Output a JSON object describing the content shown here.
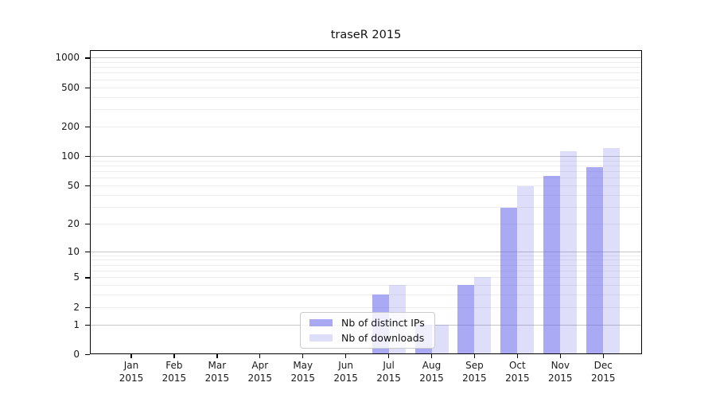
{
  "chart_data": {
    "type": "bar",
    "title": "traseR 2015",
    "categories": [
      "Jan 2015",
      "Feb 2015",
      "Mar 2015",
      "Apr 2015",
      "May 2015",
      "Jun 2015",
      "Jul 2015",
      "Aug 2015",
      "Sep 2015",
      "Oct 2015",
      "Nov 2015",
      "Dec 2015"
    ],
    "series": [
      {
        "name": "Nb of distinct IPs",
        "color": "#a8a8f3",
        "values": [
          0,
          0,
          0,
          0,
          0,
          0,
          3,
          1,
          4,
          29,
          62,
          77
        ]
      },
      {
        "name": "Nb of downloads",
        "color": "#dcdcf8",
        "values": [
          0,
          0,
          0,
          0,
          0,
          0,
          4,
          1,
          5,
          49,
          112,
          120
        ]
      }
    ],
    "xlabel": "",
    "ylabel": "",
    "y_scale": "log10(1+x)",
    "y_ticks": [
      0,
      1,
      2,
      5,
      10,
      20,
      50,
      100,
      200,
      500,
      1000
    ],
    "ylim": [
      0,
      1200
    ],
    "grid": "horizontal; major lines at 1,10,100,1000; minor lines at 2-9 of each decade",
    "legend_position": "inside-bottom-center"
  },
  "colors": {
    "bar_fills": [
      "rgba(99,99,235,0.55)",
      "rgba(99,99,235,0.21)"
    ],
    "bar_hex": [
      "#a8a8f3",
      "#dcdcf8"
    ],
    "gridline_major": "#c6c6c6",
    "gridline_minor": "#ededed",
    "axis": "#000000",
    "text": "#1a1a1a",
    "legend_border": "#cbcbcb",
    "legend_bg": "rgba(255,255,255,0.8)"
  }
}
